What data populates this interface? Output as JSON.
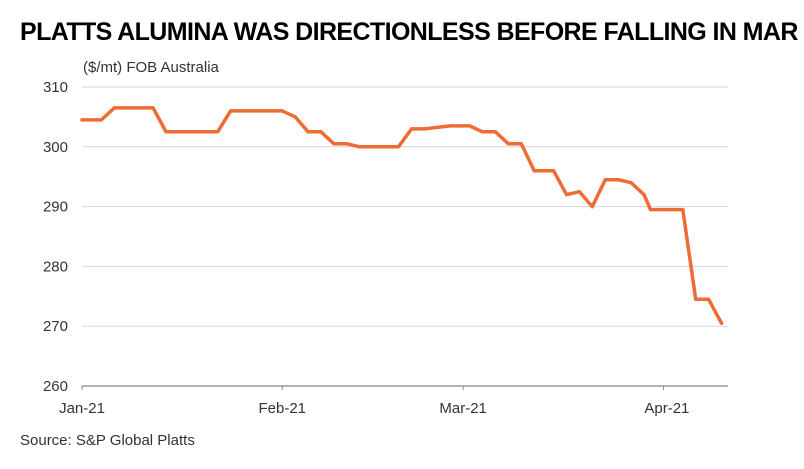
{
  "title": "PLATTS ALUMINA WAS DIRECTIONLESS BEFORE FALLING IN MAR",
  "unit_label": "($/mt) FOB Australia",
  "source": "Source: S&P Global Platts",
  "colors": {
    "line": "#ee6c35",
    "grid": "#d6d6d6",
    "axis": "#888888",
    "text": "#333333"
  },
  "chart_data": {
    "type": "line",
    "title": "PLATTS ALUMINA WAS DIRECTIONLESS BEFORE FALLING IN MAR",
    "ylabel": "($/mt) FOB Australia",
    "xlabel": "",
    "ylim": [
      260,
      310
    ],
    "yticks": [
      310,
      300,
      290,
      280,
      270,
      260
    ],
    "xticks": [
      {
        "label": "Jan-21",
        "date": "2021-01-01"
      },
      {
        "label": "Feb-21",
        "date": "2021-02-01"
      },
      {
        "label": "Mar-21",
        "date": "2021-03-01"
      },
      {
        "label": "Apr-21",
        "date": "2021-04-01"
      }
    ],
    "grid": true,
    "series": [
      {
        "x": [
          "2021-01-01",
          "2021-01-04",
          "2021-01-06",
          "2021-01-12",
          "2021-01-14",
          "2021-01-22",
          "2021-01-24",
          "2021-02-01",
          "2021-02-03",
          "2021-02-05",
          "2021-02-07",
          "2021-02-09",
          "2021-02-11",
          "2021-02-13",
          "2021-02-15",
          "2021-02-19",
          "2021-02-21",
          "2021-02-23",
          "2021-02-27",
          "2021-03-02",
          "2021-03-04",
          "2021-03-06",
          "2021-03-08",
          "2021-03-10",
          "2021-03-12",
          "2021-03-13",
          "2021-03-15",
          "2021-03-17",
          "2021-03-19",
          "2021-03-21",
          "2021-03-23",
          "2021-03-25",
          "2021-03-27",
          "2021-03-29",
          "2021-03-30",
          "2021-04-01",
          "2021-04-04",
          "2021-04-06",
          "2021-04-08",
          "2021-04-10"
        ],
        "values": [
          304.5,
          304.5,
          306.5,
          306.5,
          302.5,
          302.5,
          306,
          306,
          305,
          302.5,
          302.5,
          300.5,
          300.5,
          300,
          300,
          300,
          303,
          303,
          303.5,
          303.5,
          302.5,
          302.5,
          300.5,
          300.5,
          296,
          296,
          296,
          292,
          292.5,
          290,
          294.5,
          294.5,
          294,
          292,
          289.5,
          289.5,
          289.5,
          274.5,
          274.5,
          270.5
        ]
      }
    ]
  }
}
